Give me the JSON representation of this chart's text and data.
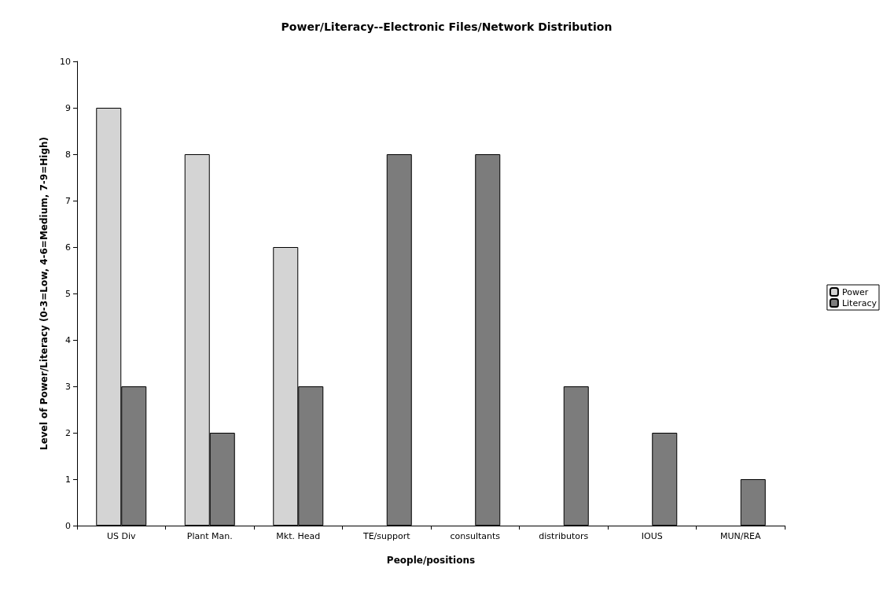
{
  "chart_data": {
    "type": "bar",
    "title": "Power/Literacy--Electronic Files/Network Distribution",
    "xlabel": "People/positions",
    "ylabel": "Level of Power/Literacy (0-3=Low, 4-6=Medium, 7-9=High)",
    "categories": [
      "US Div",
      "Plant Man.",
      "Mkt. Head",
      "TE/support",
      "consultants",
      "distributors",
      "IOUS",
      "MUN/REA"
    ],
    "series": [
      {
        "name": "Power",
        "color": "#d4d4d4",
        "values": [
          9,
          8,
          6,
          null,
          null,
          null,
          null,
          null
        ]
      },
      {
        "name": "Literacy",
        "color": "#7c7c7c",
        "values": [
          3,
          2,
          3,
          8,
          8,
          3,
          2,
          1
        ]
      }
    ],
    "ylim": [
      0,
      10
    ],
    "yticks": [
      0,
      1,
      2,
      3,
      4,
      5,
      6,
      7,
      8,
      9,
      10
    ],
    "grid": false,
    "legend": "right"
  }
}
